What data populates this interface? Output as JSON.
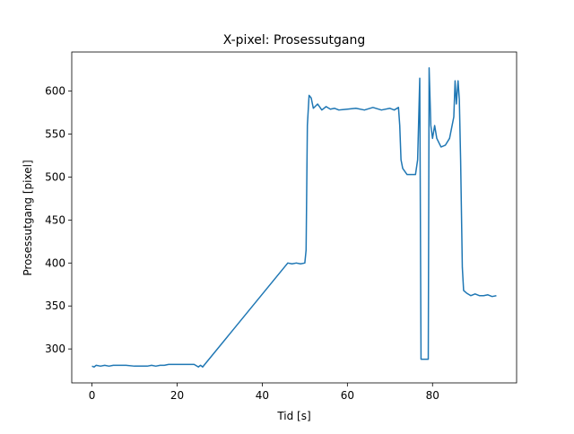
{
  "chart_data": {
    "type": "line",
    "title": "X-pixel: Prosessutgang",
    "x_label": "Tid [s]",
    "y_label": "Prosessutgang [pixel]",
    "xlim": [
      -4.75,
      99.75
    ],
    "ylim": [
      260.5,
      645.5
    ],
    "xticks": [
      0,
      20,
      40,
      60,
      80
    ],
    "yticks": [
      300,
      350,
      400,
      450,
      500,
      550,
      600
    ],
    "grid": false,
    "x": [
      0,
      0.5,
      1,
      2,
      3,
      4,
      5,
      6,
      8,
      10,
      13,
      14,
      15,
      16,
      17,
      18,
      20,
      22,
      24,
      25,
      25.5,
      26,
      46,
      47,
      48,
      49,
      50,
      50.3,
      50.6,
      51,
      51.5,
      52,
      53,
      54,
      55,
      56,
      57,
      58,
      60,
      62,
      64,
      66,
      68,
      70,
      71,
      72,
      72.3,
      72.6,
      73,
      74,
      75,
      76,
      76.5,
      77,
      77.3,
      78,
      79,
      79.2,
      79.6,
      80,
      80.5,
      81,
      82,
      83,
      84,
      85,
      85.3,
      85.6,
      86,
      86.3,
      86.6,
      87,
      87.3,
      88,
      89,
      90,
      91,
      92,
      93,
      94,
      95
    ],
    "series": [
      {
        "name": "Prosessutgang",
        "color": "#1f77b4",
        "values": [
          280,
          279,
          281,
          280,
          281,
          280,
          281,
          281,
          281,
          280,
          280,
          281,
          280,
          281,
          281,
          282,
          282,
          282,
          282,
          279,
          281,
          279,
          400,
          399,
          400,
          399,
          400,
          415,
          560,
          595,
          592,
          580,
          585,
          578,
          582,
          579,
          580,
          578,
          579,
          580,
          578,
          581,
          578,
          580,
          578,
          581,
          560,
          520,
          510,
          503,
          503,
          503,
          520,
          615,
          288,
          288,
          288,
          627,
          560,
          545,
          560,
          545,
          535,
          537,
          545,
          570,
          612,
          585,
          612,
          590,
          520,
          395,
          368,
          365,
          362,
          364,
          362,
          362,
          363,
          361,
          362
        ]
      }
    ]
  }
}
